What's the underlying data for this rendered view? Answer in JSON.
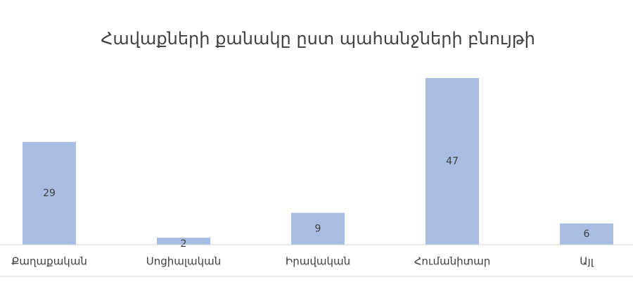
{
  "chart_data": {
    "type": "bar",
    "title": "Հավաքների քանակը ըստ պահանջների բնույթի",
    "categories": [
      "Քաղաքական",
      "Սոցիալական",
      "Իրավական",
      "Հումանիտար",
      "Այլ"
    ],
    "values": [
      29,
      2,
      9,
      47,
      6
    ],
    "color": "#a9bde3"
  }
}
